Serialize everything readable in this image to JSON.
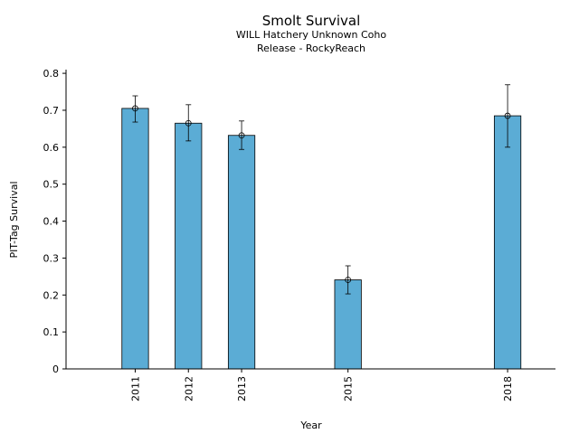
{
  "chart_data": {
    "type": "bar",
    "title": "Smolt Survival",
    "subtitle_lines": [
      "WILL Hatchery Unknown Coho",
      "Release - RockyReach"
    ],
    "xlabel": "Year",
    "ylabel": "PIT-Tag Survival",
    "x": [
      2011,
      2012,
      2013,
      2015,
      2018
    ],
    "values": [
      0.705,
      0.665,
      0.632,
      0.241,
      0.685
    ],
    "error_low": [
      0.668,
      0.617,
      0.594,
      0.203,
      0.6
    ],
    "error_high": [
      0.739,
      0.715,
      0.671,
      0.279,
      0.769
    ],
    "xlim": [
      2009.7,
      2018.9
    ],
    "ylim": [
      0,
      0.81
    ],
    "yticks": [
      0,
      0.1,
      0.2,
      0.3,
      0.4,
      0.5,
      0.6,
      0.7,
      0.8
    ],
    "ytick_labels": [
      "0",
      "0.1",
      "0.2",
      "0.3",
      "0.4",
      "0.5",
      "0.6",
      "0.7",
      "0.8"
    ],
    "bar_width_years": 0.5,
    "bar_color": "#5bacd5",
    "grid": false,
    "legend": "none"
  }
}
